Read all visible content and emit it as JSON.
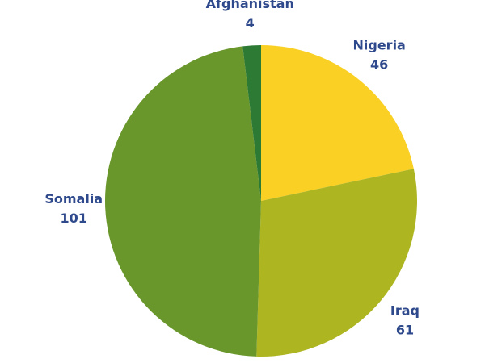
{
  "chart_data": {
    "type": "pie",
    "categories": [
      "Nigeria",
      "Iraq",
      "Somalia",
      "Afghanistan"
    ],
    "values": [
      46,
      61,
      101,
      4
    ],
    "colors": [
      "#f9d023",
      "#adb521",
      "#6a972b",
      "#2d7a34"
    ]
  }
}
